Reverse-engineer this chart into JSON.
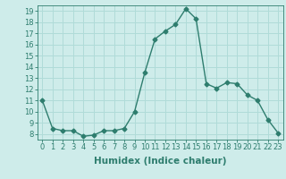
{
  "x": [
    0,
    1,
    2,
    3,
    4,
    5,
    6,
    7,
    8,
    9,
    10,
    11,
    12,
    13,
    14,
    15,
    16,
    17,
    18,
    19,
    20,
    21,
    22,
    23
  ],
  "y": [
    11.0,
    8.5,
    8.3,
    8.3,
    7.8,
    7.9,
    8.3,
    8.3,
    8.5,
    10.0,
    13.5,
    16.5,
    17.2,
    17.8,
    19.2,
    18.3,
    12.5,
    12.1,
    12.6,
    12.5,
    11.5,
    11.0,
    9.3,
    8.1
  ],
  "line_color": "#2e7d6e",
  "marker": "D",
  "marker_size": 2.5,
  "bg_color": "#ceecea",
  "grid_color": "#b0dbd8",
  "xlabel": "Humidex (Indice chaleur)",
  "xlim": [
    -0.5,
    23.5
  ],
  "ylim": [
    7.5,
    19.5
  ],
  "yticks": [
    8,
    9,
    10,
    11,
    12,
    13,
    14,
    15,
    16,
    17,
    18,
    19
  ],
  "xticks": [
    0,
    1,
    2,
    3,
    4,
    5,
    6,
    7,
    8,
    9,
    10,
    11,
    12,
    13,
    14,
    15,
    16,
    17,
    18,
    19,
    20,
    21,
    22,
    23
  ],
  "tick_color": "#2e7d6e",
  "label_fontsize": 6.0,
  "xlabel_fontsize": 7.5,
  "line_width": 1.0
}
